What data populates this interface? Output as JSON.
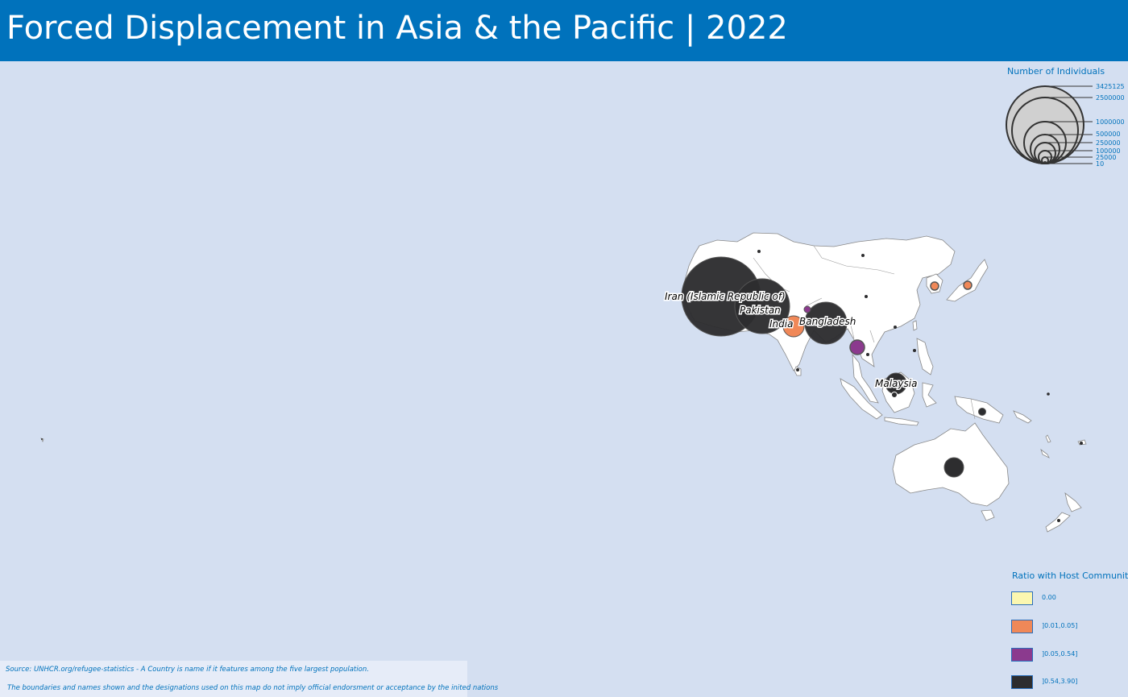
{
  "header": {
    "title": "Forced Displacement in Asia & the Pacific | 2022"
  },
  "colors": {
    "header_bg": "#0072bc",
    "ocean": "#d4dff1",
    "land": "#ffffff",
    "ratio_zero": "#fbf7b0",
    "ratio_low": "#f08858",
    "ratio_mid": "#8b3a8e",
    "ratio_high": "#2d2d2f"
  },
  "map": {
    "country_labels": [
      "Iran (Islamic Republic of)",
      "Pakistan",
      "India",
      "Bangladesh",
      "Malaysia"
    ]
  },
  "size_legend": {
    "title": "Number of Individuals",
    "values": [
      "3425125",
      "2500000",
      "1000000",
      "500000",
      "250000",
      "100000",
      "25000",
      "10"
    ]
  },
  "color_legend": {
    "title": "Ratio with Host Community",
    "items": [
      {
        "label": "0.00",
        "color": "#fbf7b0"
      },
      {
        "label": "]0.01,0.05]",
        "color": "#f08858"
      },
      {
        "label": "]0.05,0.54]",
        "color": "#8b3a8e"
      },
      {
        "label": "]0.54,3.90]",
        "color": "#2d2d2f"
      }
    ]
  },
  "footer": {
    "source": "Source: UNHCR.org/refugee-statistics - A Country is name if it features among the five largest population.",
    "disclaimer": "The boundaries and names shown and the designations used on this map do not imply official endorsment or acceptance by the inited nations"
  }
}
